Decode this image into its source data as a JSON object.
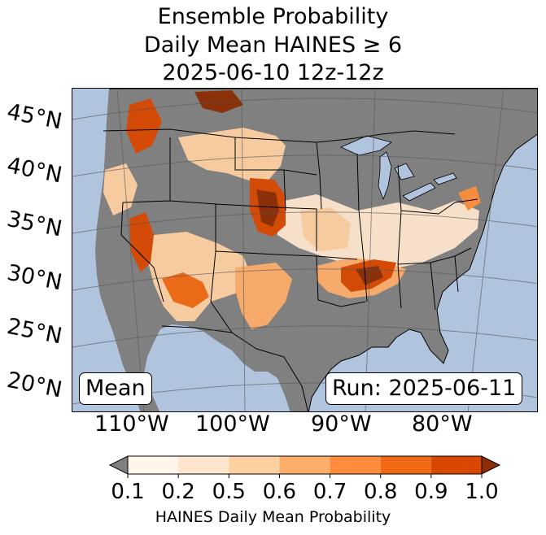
{
  "title": {
    "line1": "Ensemble Probability",
    "line2": "Daily Mean HAINES ≥ 6",
    "line3": "2025-06-10 12z-12z"
  },
  "map": {
    "lat_labels": [
      "45°N",
      "40°N",
      "35°N",
      "30°N",
      "25°N",
      "20°N"
    ],
    "lon_labels": [
      "110°W",
      "100°W",
      "90°W",
      "80°W"
    ],
    "stat_label": "Mean",
    "run_label": "Run: 2025-06-11",
    "colors": {
      "ocean": "#b0c4de",
      "land_below_threshold": "#808080",
      "border": "#000000",
      "gridline": "#555555"
    }
  },
  "colorbar": {
    "ticks": [
      "0.1",
      "0.2",
      "0.5",
      "0.6",
      "0.7",
      "0.8",
      "0.9",
      "1.0"
    ],
    "colors": [
      "#fff5eb",
      "#fee6ce",
      "#fdd0a2",
      "#fdae6b",
      "#fd8d3c",
      "#f16913",
      "#d94801"
    ],
    "under_color": "#808080",
    "over_color": "#8c2d04",
    "label": "HAINES Daily Mean Probability"
  }
}
